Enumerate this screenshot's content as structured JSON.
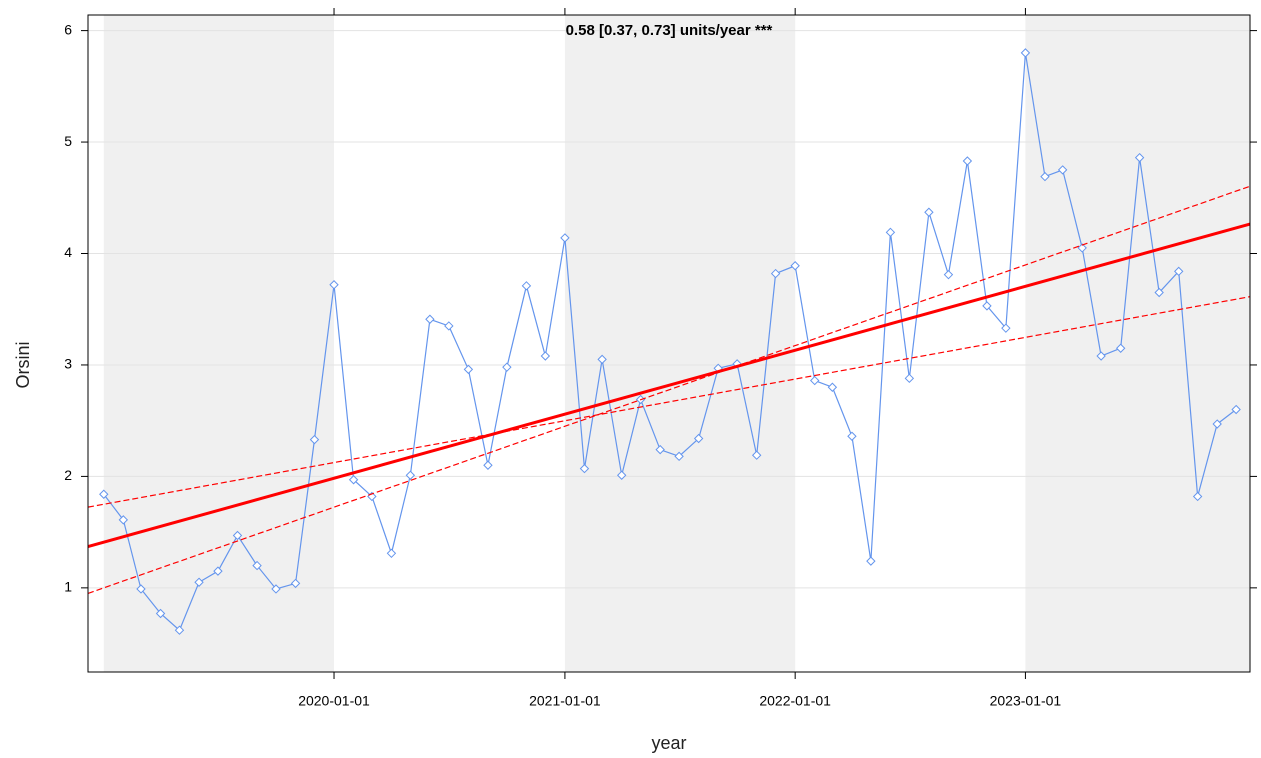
{
  "chart_data": {
    "type": "line",
    "title": "0.58 [0.37, 0.73] units/year ***",
    "title_color": "#1a7a1a",
    "x_label": "year",
    "y_label": "Orsini",
    "xlim": [
      "2018-12-07",
      "2023-12-23"
    ],
    "xticks": [
      "2020-01-01",
      "2021-01-01",
      "2022-01-01",
      "2023-01-01"
    ],
    "ylim": [
      0.245,
      6.14
    ],
    "yticks": [
      1,
      2,
      3,
      4,
      5,
      6
    ],
    "grid": true,
    "x": [
      "2019-01-01",
      "2019-02-01",
      "2019-03-01",
      "2019-04-01",
      "2019-05-01",
      "2019-06-01",
      "2019-07-01",
      "2019-08-01",
      "2019-09-01",
      "2019-10-01",
      "2019-11-01",
      "2019-12-01",
      "2020-01-01",
      "2020-02-01",
      "2020-03-01",
      "2020-04-01",
      "2020-05-01",
      "2020-06-01",
      "2020-07-01",
      "2020-08-01",
      "2020-09-01",
      "2020-10-01",
      "2020-11-01",
      "2020-12-01",
      "2021-01-01",
      "2021-02-01",
      "2021-03-01",
      "2021-04-01",
      "2021-05-01",
      "2021-06-01",
      "2021-07-01",
      "2021-08-01",
      "2021-09-01",
      "2021-10-01",
      "2021-11-01",
      "2021-12-01",
      "2022-01-01",
      "2022-02-01",
      "2022-03-01",
      "2022-04-01",
      "2022-05-01",
      "2022-06-01",
      "2022-07-01",
      "2022-08-01",
      "2022-09-01",
      "2022-10-01",
      "2022-11-01",
      "2022-12-01",
      "2023-01-01",
      "2023-02-01",
      "2023-03-01",
      "2023-04-01",
      "2023-05-01",
      "2023-06-01",
      "2023-07-01",
      "2023-08-01",
      "2023-09-01",
      "2023-10-01",
      "2023-11-01",
      "2023-12-01"
    ],
    "series": [
      {
        "color": "#6495ed",
        "values": [
          1.84,
          1.61,
          0.99,
          0.77,
          0.62,
          1.05,
          1.15,
          1.47,
          1.2,
          0.99,
          1.04,
          2.33,
          3.72,
          1.97,
          1.82,
          1.31,
          2.01,
          3.41,
          3.35,
          2.96,
          2.1,
          2.98,
          3.71,
          3.08,
          4.14,
          2.07,
          3.05,
          2.01,
          2.69,
          2.24,
          2.18,
          2.34,
          2.97,
          3.01,
          2.19,
          3.82,
          3.89,
          2.86,
          2.8,
          2.36,
          1.24,
          4.19,
          2.88,
          4.37,
          3.81,
          4.83,
          3.53,
          3.33,
          5.8,
          4.69,
          4.75,
          4.05,
          3.08,
          3.15,
          4.86,
          3.65,
          3.84,
          1.82,
          2.47,
          2.6
        ]
      }
    ],
    "trend": {
      "color": "#ff0000",
      "x": [
        "2019-01-01",
        "2023-12-01"
      ],
      "fit": [
        1.41,
        4.23
      ],
      "band_a": [
        1.75,
        3.59
      ],
      "band_b": [
        1.0,
        4.56
      ]
    }
  }
}
